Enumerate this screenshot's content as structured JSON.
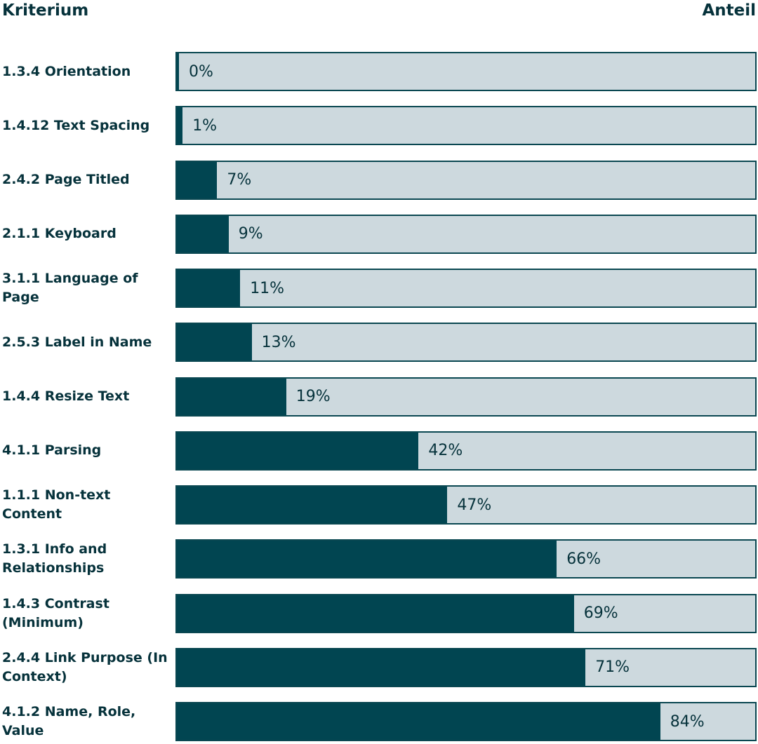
{
  "chart_data": {
    "type": "bar",
    "orientation": "horizontal",
    "column_headers": {
      "category": "Kriterium",
      "value": "Anteil"
    },
    "x_range": [
      0,
      100
    ],
    "unit": "%",
    "colors": {
      "fill": "#014551",
      "track": "#cdd9de",
      "border": "#0a4751",
      "text": "#06323b"
    },
    "bars": [
      {
        "label": "1.3.4 Orientation",
        "value": 0,
        "value_label": "0%"
      },
      {
        "label": "1.4.12 Text Spacing",
        "value": 1,
        "value_label": "1%"
      },
      {
        "label": "2.4.2 Page Titled",
        "value": 7,
        "value_label": "7%"
      },
      {
        "label": "2.1.1 Keyboard",
        "value": 9,
        "value_label": "9%"
      },
      {
        "label": "3.1.1 Language of Page",
        "value": 11,
        "value_label": "11%"
      },
      {
        "label": "2.5.3 Label in Name",
        "value": 13,
        "value_label": "13%"
      },
      {
        "label": "1.4.4 Resize Text",
        "value": 19,
        "value_label": "19%"
      },
      {
        "label": "4.1.1 Parsing",
        "value": 42,
        "value_label": "42%"
      },
      {
        "label": "1.1.1 Non-text Content",
        "value": 47,
        "value_label": "47%"
      },
      {
        "label": "1.3.1 Info and Relationships",
        "value": 66,
        "value_label": "66%"
      },
      {
        "label": "1.4.3 Contrast (Minimum)",
        "value": 69,
        "value_label": "69%"
      },
      {
        "label": "2.4.4 Link Purpose (In Context)",
        "value": 71,
        "value_label": "71%"
      },
      {
        "label": "4.1.2 Name, Role, Value",
        "value": 84,
        "value_label": "84%"
      }
    ]
  }
}
